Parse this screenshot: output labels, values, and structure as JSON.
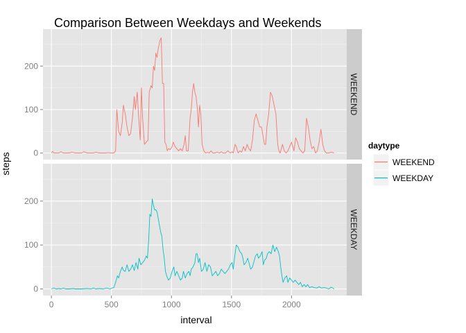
{
  "chart_data": {
    "type": "line",
    "title": "Comparison Between Weekdays and Weekends",
    "xlabel": "interval",
    "ylabel": "steps",
    "xlim": [
      -70,
      2460
    ],
    "ylim": [
      -15,
      285
    ],
    "x_ticks": [
      0,
      500,
      1000,
      1500,
      2000
    ],
    "x_tick_labels": [
      "0",
      "500",
      "1000",
      "1500",
      "2000"
    ],
    "y_ticks": [
      0,
      100,
      200
    ],
    "y_tick_labels": [
      "0",
      "100",
      "200"
    ],
    "grid": true,
    "legend": {
      "title": "daytype",
      "position": "right"
    },
    "series": [
      {
        "name": "WEEKEND",
        "panel": "WEEKEND",
        "color": "#F8766D",
        "points": [
          [
            0,
            0
          ],
          [
            10,
            4
          ],
          [
            20,
            0
          ],
          [
            60,
            0
          ],
          [
            80,
            3
          ],
          [
            100,
            0
          ],
          [
            150,
            0
          ],
          [
            170,
            2
          ],
          [
            200,
            0
          ],
          [
            250,
            0
          ],
          [
            270,
            3
          ],
          [
            300,
            0
          ],
          [
            350,
            0
          ],
          [
            370,
            2
          ],
          [
            400,
            0
          ],
          [
            450,
            0
          ],
          [
            470,
            1
          ],
          [
            500,
            0
          ],
          [
            520,
            0
          ],
          [
            535,
            5
          ],
          [
            545,
            100
          ],
          [
            560,
            50
          ],
          [
            575,
            40
          ],
          [
            590,
            70
          ],
          [
            600,
            110
          ],
          [
            615,
            90
          ],
          [
            630,
            60
          ],
          [
            645,
            40
          ],
          [
            660,
            45
          ],
          [
            675,
            80
          ],
          [
            690,
            130
          ],
          [
            700,
            100
          ],
          [
            715,
            140
          ],
          [
            725,
            90
          ],
          [
            740,
            30
          ],
          [
            750,
            150
          ],
          [
            760,
            80
          ],
          [
            775,
            20
          ],
          [
            790,
            25
          ],
          [
            805,
            30
          ],
          [
            815,
            140
          ],
          [
            830,
            155
          ],
          [
            840,
            150
          ],
          [
            850,
            200
          ],
          [
            860,
            190
          ],
          [
            870,
            230
          ],
          [
            880,
            220
          ],
          [
            890,
            240
          ],
          [
            905,
            260
          ],
          [
            915,
            265
          ],
          [
            925,
            160
          ],
          [
            935,
            160
          ],
          [
            945,
            25
          ],
          [
            955,
            20
          ],
          [
            965,
            5
          ],
          [
            975,
            10
          ],
          [
            990,
            8
          ],
          [
            1005,
            15
          ],
          [
            1015,
            25
          ],
          [
            1030,
            15
          ],
          [
            1045,
            10
          ],
          [
            1060,
            5
          ],
          [
            1075,
            10
          ],
          [
            1090,
            5
          ],
          [
            1105,
            20
          ],
          [
            1115,
            40
          ],
          [
            1125,
            5
          ],
          [
            1140,
            5
          ],
          [
            1155,
            80
          ],
          [
            1165,
            100
          ],
          [
            1175,
            140
          ],
          [
            1185,
            160
          ],
          [
            1195,
            140
          ],
          [
            1205,
            130
          ],
          [
            1215,
            105
          ],
          [
            1225,
            60
          ],
          [
            1235,
            110
          ],
          [
            1245,
            90
          ],
          [
            1255,
            20
          ],
          [
            1270,
            5
          ],
          [
            1285,
            0
          ],
          [
            1300,
            2
          ],
          [
            1315,
            0
          ],
          [
            1330,
            5
          ],
          [
            1345,
            0
          ],
          [
            1360,
            0
          ],
          [
            1380,
            2
          ],
          [
            1400,
            0
          ],
          [
            1415,
            3
          ],
          [
            1430,
            0
          ],
          [
            1450,
            0
          ],
          [
            1470,
            5
          ],
          [
            1490,
            0
          ],
          [
            1505,
            3
          ],
          [
            1515,
            0
          ],
          [
            1530,
            20
          ],
          [
            1540,
            15
          ],
          [
            1555,
            0
          ],
          [
            1570,
            5
          ],
          [
            1585,
            2
          ],
          [
            1600,
            15
          ],
          [
            1615,
            5
          ],
          [
            1630,
            20
          ],
          [
            1645,
            10
          ],
          [
            1660,
            5
          ],
          [
            1675,
            30
          ],
          [
            1690,
            75
          ],
          [
            1705,
            90
          ],
          [
            1720,
            75
          ],
          [
            1735,
            60
          ],
          [
            1750,
            60
          ],
          [
            1765,
            35
          ],
          [
            1775,
            20
          ],
          [
            1785,
            20
          ],
          [
            1795,
            60
          ],
          [
            1810,
            90
          ],
          [
            1825,
            140
          ],
          [
            1840,
            130
          ],
          [
            1855,
            110
          ],
          [
            1870,
            90
          ],
          [
            1885,
            20
          ],
          [
            1895,
            5
          ],
          [
            1905,
            0
          ],
          [
            1915,
            10
          ],
          [
            1925,
            20
          ],
          [
            1940,
            5
          ],
          [
            1955,
            0
          ],
          [
            1970,
            5
          ],
          [
            1985,
            15
          ],
          [
            2000,
            25
          ],
          [
            2010,
            15
          ],
          [
            2020,
            5
          ],
          [
            2035,
            35
          ],
          [
            2050,
            25
          ],
          [
            2065,
            10
          ],
          [
            2080,
            5
          ],
          [
            2095,
            0
          ],
          [
            2110,
            5
          ],
          [
            2125,
            80
          ],
          [
            2140,
            60
          ],
          [
            2155,
            30
          ],
          [
            2170,
            10
          ],
          [
            2185,
            15
          ],
          [
            2200,
            0
          ],
          [
            2215,
            5
          ],
          [
            2230,
            25
          ],
          [
            2245,
            55
          ],
          [
            2260,
            20
          ],
          [
            2275,
            5
          ],
          [
            2290,
            0
          ],
          [
            2310,
            0
          ],
          [
            2330,
            2
          ],
          [
            2355,
            0
          ]
        ]
      },
      {
        "name": "WEEKDAY",
        "panel": "WEEKDAY",
        "color": "#00BFC4",
        "points": [
          [
            0,
            0
          ],
          [
            20,
            2
          ],
          [
            40,
            0
          ],
          [
            60,
            1
          ],
          [
            80,
            0
          ],
          [
            100,
            2
          ],
          [
            120,
            0
          ],
          [
            150,
            0
          ],
          [
            180,
            1
          ],
          [
            200,
            0
          ],
          [
            250,
            0
          ],
          [
            300,
            1
          ],
          [
            330,
            0
          ],
          [
            350,
            2
          ],
          [
            370,
            0
          ],
          [
            400,
            1
          ],
          [
            430,
            0
          ],
          [
            460,
            2
          ],
          [
            490,
            0
          ],
          [
            505,
            2
          ],
          [
            520,
            3
          ],
          [
            535,
            15
          ],
          [
            550,
            30
          ],
          [
            560,
            25
          ],
          [
            575,
            40
          ],
          [
            590,
            50
          ],
          [
            600,
            42
          ],
          [
            615,
            40
          ],
          [
            630,
            55
          ],
          [
            645,
            40
          ],
          [
            660,
            45
          ],
          [
            675,
            55
          ],
          [
            690,
            42
          ],
          [
            705,
            60
          ],
          [
            720,
            45
          ],
          [
            730,
            70
          ],
          [
            745,
            55
          ],
          [
            760,
            60
          ],
          [
            775,
            65
          ],
          [
            790,
            75
          ],
          [
            800,
            70
          ],
          [
            810,
            110
          ],
          [
            820,
            170
          ],
          [
            830,
            165
          ],
          [
            840,
            205
          ],
          [
            850,
            190
          ],
          [
            860,
            180
          ],
          [
            870,
            180
          ],
          [
            880,
            175
          ],
          [
            890,
            160
          ],
          [
            900,
            145
          ],
          [
            910,
            130
          ],
          [
            920,
            120
          ],
          [
            930,
            90
          ],
          [
            940,
            70
          ],
          [
            950,
            40
          ],
          [
            960,
            30
          ],
          [
            975,
            20
          ],
          [
            990,
            25
          ],
          [
            1005,
            40
          ],
          [
            1020,
            50
          ],
          [
            1030,
            30
          ],
          [
            1045,
            40
          ],
          [
            1060,
            30
          ],
          [
            1075,
            20
          ],
          [
            1090,
            25
          ],
          [
            1100,
            40
          ],
          [
            1115,
            25
          ],
          [
            1130,
            35
          ],
          [
            1145,
            40
          ],
          [
            1155,
            30
          ],
          [
            1165,
            45
          ],
          [
            1180,
            50
          ],
          [
            1195,
            60
          ],
          [
            1205,
            80
          ],
          [
            1215,
            80
          ],
          [
            1225,
            60
          ],
          [
            1235,
            70
          ],
          [
            1250,
            40
          ],
          [
            1265,
            45
          ],
          [
            1280,
            60
          ],
          [
            1295,
            40
          ],
          [
            1310,
            55
          ],
          [
            1325,
            50
          ],
          [
            1340,
            30
          ],
          [
            1355,
            35
          ],
          [
            1370,
            40
          ],
          [
            1385,
            30
          ],
          [
            1400,
            35
          ],
          [
            1415,
            45
          ],
          [
            1430,
            40
          ],
          [
            1445,
            35
          ],
          [
            1460,
            40
          ],
          [
            1475,
            45
          ],
          [
            1490,
            55
          ],
          [
            1505,
            60
          ],
          [
            1515,
            45
          ],
          [
            1525,
            70
          ],
          [
            1540,
            100
          ],
          [
            1555,
            95
          ],
          [
            1570,
            85
          ],
          [
            1585,
            80
          ],
          [
            1595,
            70
          ],
          [
            1605,
            55
          ],
          [
            1620,
            60
          ],
          [
            1635,
            70
          ],
          [
            1650,
            55
          ],
          [
            1660,
            45
          ],
          [
            1675,
            50
          ],
          [
            1690,
            65
          ],
          [
            1700,
            75
          ],
          [
            1715,
            80
          ],
          [
            1725,
            70
          ],
          [
            1740,
            75
          ],
          [
            1755,
            85
          ],
          [
            1765,
            55
          ],
          [
            1775,
            65
          ],
          [
            1790,
            70
          ],
          [
            1800,
            80
          ],
          [
            1815,
            85
          ],
          [
            1830,
            80
          ],
          [
            1845,
            100
          ],
          [
            1860,
            85
          ],
          [
            1875,
            95
          ],
          [
            1890,
            85
          ],
          [
            1900,
            75
          ],
          [
            1910,
            50
          ],
          [
            1920,
            30
          ],
          [
            1930,
            15
          ],
          [
            1945,
            25
          ],
          [
            1960,
            30
          ],
          [
            1970,
            15
          ],
          [
            1985,
            25
          ],
          [
            2000,
            20
          ],
          [
            2015,
            15
          ],
          [
            2030,
            20
          ],
          [
            2045,
            15
          ],
          [
            2060,
            10
          ],
          [
            2075,
            15
          ],
          [
            2090,
            5
          ],
          [
            2105,
            10
          ],
          [
            2120,
            5
          ],
          [
            2135,
            10
          ],
          [
            2150,
            3
          ],
          [
            2170,
            5
          ],
          [
            2190,
            3
          ],
          [
            2210,
            2
          ],
          [
            2230,
            5
          ],
          [
            2250,
            2
          ],
          [
            2270,
            3
          ],
          [
            2290,
            2
          ],
          [
            2310,
            0
          ],
          [
            2330,
            4
          ],
          [
            2345,
            2
          ],
          [
            2355,
            0
          ]
        ]
      }
    ]
  }
}
